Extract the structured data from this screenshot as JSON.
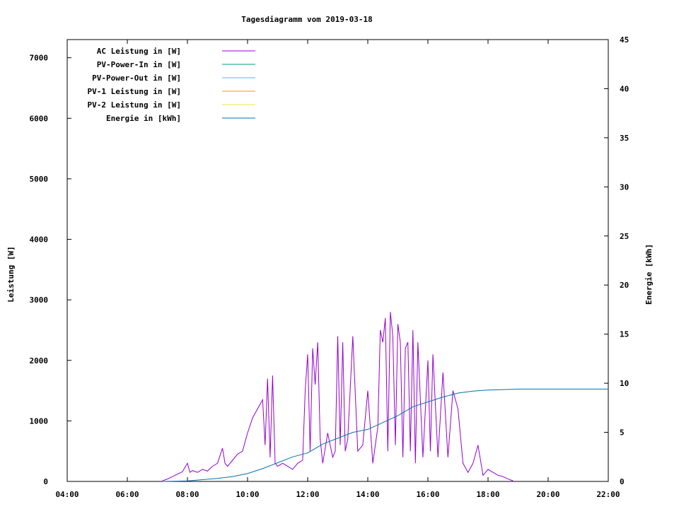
{
  "chart_data": {
    "type": "line",
    "title": "Tagesdiagramm vom 2019-03-18",
    "ylabel": "Leistung [W]",
    "y2label": "Energie [kWh]",
    "x_ticks": [
      "04:00",
      "06:00",
      "08:00",
      "10:00",
      "12:00",
      "14:00",
      "16:00",
      "18:00",
      "20:00",
      "22:00"
    ],
    "y_ticks": [
      "0",
      "1000",
      "2000",
      "3000",
      "4000",
      "5000",
      "6000",
      "7000"
    ],
    "y2_ticks": [
      "0",
      "5",
      "10",
      "15",
      "20",
      "25",
      "30",
      "35",
      "40",
      "45"
    ],
    "xlim": [
      "04:00",
      "22:00"
    ],
    "ylim": [
      0,
      7300
    ],
    "y2lim": [
      0,
      45
    ],
    "grid": false,
    "legend_position": "top-left",
    "series": [
      {
        "name": "AC Leistung in [W]",
        "axis": "left",
        "color": "#9400d3",
        "x": [
          "07:10",
          "07:20",
          "07:30",
          "07:40",
          "07:50",
          "08:00",
          "08:05",
          "08:10",
          "08:20",
          "08:30",
          "08:40",
          "08:50",
          "09:00",
          "09:10",
          "09:15",
          "09:20",
          "09:30",
          "09:40",
          "09:50",
          "10:00",
          "10:10",
          "10:20",
          "10:30",
          "10:35",
          "10:40",
          "10:45",
          "10:50",
          "10:55",
          "11:00",
          "11:10",
          "11:20",
          "11:30",
          "11:40",
          "11:50",
          "11:55",
          "12:00",
          "12:05",
          "12:10",
          "12:15",
          "12:20",
          "12:25",
          "12:30",
          "12:40",
          "12:50",
          "12:55",
          "13:00",
          "13:05",
          "13:10",
          "13:15",
          "13:20",
          "13:30",
          "13:40",
          "13:50",
          "14:00",
          "14:10",
          "14:20",
          "14:25",
          "14:30",
          "14:35",
          "14:40",
          "14:45",
          "14:50",
          "14:55",
          "15:00",
          "15:05",
          "15:10",
          "15:15",
          "15:20",
          "15:25",
          "15:30",
          "15:35",
          "15:40",
          "15:50",
          "16:00",
          "16:05",
          "16:10",
          "16:20",
          "16:30",
          "16:40",
          "16:50",
          "17:00",
          "17:10",
          "17:20",
          "17:30",
          "17:40",
          "17:50",
          "18:00",
          "18:10",
          "18:20",
          "18:30",
          "18:40",
          "18:50"
        ],
        "values": [
          10,
          40,
          80,
          120,
          160,
          300,
          150,
          180,
          150,
          200,
          170,
          250,
          300,
          550,
          300,
          250,
          350,
          450,
          500,
          800,
          1050,
          1200,
          1350,
          600,
          1700,
          400,
          1750,
          300,
          250,
          300,
          250,
          200,
          300,
          350,
          1500,
          2100,
          500,
          2200,
          1600,
          2300,
          700,
          300,
          800,
          400,
          500,
          2400,
          600,
          2300,
          500,
          700,
          2400,
          500,
          600,
          1500,
          300,
          900,
          2500,
          2300,
          2700,
          500,
          2800,
          2400,
          600,
          2600,
          2300,
          400,
          2200,
          2300,
          500,
          2500,
          300,
          2300,
          400,
          2000,
          500,
          2100,
          400,
          1800,
          400,
          1500,
          1200,
          300,
          150,
          300,
          600,
          100,
          200,
          150,
          100,
          80,
          40,
          10
        ]
      },
      {
        "name": "PV-Power-In in [W]",
        "axis": "left",
        "color": "#009e73",
        "x": [],
        "values": []
      },
      {
        "name": "PV-Power-Out in [W]",
        "axis": "left",
        "color": "#56b4e9",
        "x": [],
        "values": []
      },
      {
        "name": "PV-1 Leistung in [W]",
        "axis": "left",
        "color": "#e69f00",
        "x": [],
        "values": []
      },
      {
        "name": "PV-2 Leistung in [W]",
        "axis": "left",
        "color": "#f0e442",
        "x": [],
        "values": []
      },
      {
        "name": "Energie in [kWh]",
        "axis": "right",
        "color": "#0072b2",
        "x": [
          "07:10",
          "08:00",
          "09:00",
          "09:30",
          "10:00",
          "10:30",
          "11:00",
          "11:30",
          "12:00",
          "12:30",
          "13:00",
          "13:30",
          "14:00",
          "14:30",
          "15:00",
          "15:30",
          "16:00",
          "16:30",
          "17:00",
          "17:30",
          "18:00",
          "18:30",
          "19:00",
          "20:00",
          "21:00",
          "22:00"
        ],
        "values": [
          0,
          0.05,
          0.3,
          0.5,
          0.8,
          1.3,
          1.9,
          2.5,
          2.9,
          3.8,
          4.4,
          5.0,
          5.3,
          6.0,
          6.7,
          7.6,
          8.1,
          8.6,
          9.0,
          9.2,
          9.3,
          9.35,
          9.4,
          9.4,
          9.4,
          9.4
        ]
      }
    ]
  }
}
